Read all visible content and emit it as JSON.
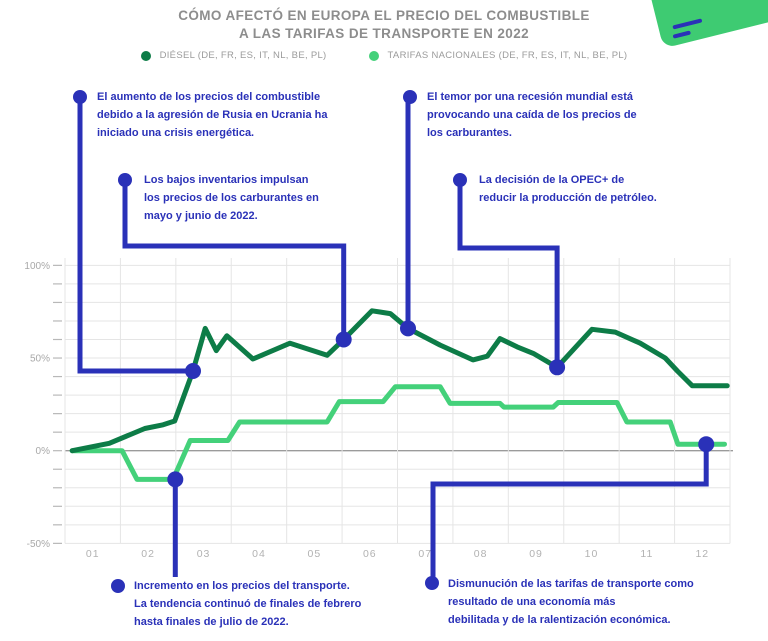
{
  "title": {
    "line1": "CÓMO AFECTÓ EN EUROPA EL PRECIO DEL COMBUSTIBLE",
    "line2": "A LAS TARIFAS DE TRANSPORTE EN 2022"
  },
  "legend": [
    {
      "label": "DIÉSEL (DE, FR, ES, IT, NL, BE, PL)",
      "color": "#0d7c47"
    },
    {
      "label": "TARIFAS NACIONALES (DE, FR, ES, IT, NL, BE, PL)",
      "color": "#44d17a"
    }
  ],
  "annotations": [
    {
      "id": "crisis-energetica",
      "text": "El aumento de los precios del combustible\ndebido a la agresión de Rusia en Ucrania ha\niniciado una crisis energética."
    },
    {
      "id": "bajos-inventarios",
      "text": "Los bajos inventarios impulsan\nlos precios de los carburantes en\nmayo y junio de 2022."
    },
    {
      "id": "recesion-mundial",
      "text": "El temor por una recesión mundial está\nprovocando una caída de los precios de\nlos carburantes."
    },
    {
      "id": "opec",
      "text": "La decisión de la OPEC+ de\nreducir la producción de petróleo."
    },
    {
      "id": "incremento-transporte",
      "text": "Incremento en los precios del transporte.\nLa tendencia continuó de finales de febrero\nhasta finales de julio de 2022."
    },
    {
      "id": "disminucion-tarifas",
      "text": "Dismunución de las tarifas de transporte como\nresultado de una economía más\ndebilitada y de la ralentización económica."
    }
  ],
  "colors": {
    "accent_blue": "#2a31b8",
    "diesel_green": "#0d7c47",
    "tarifas_green": "#44d17a",
    "grid": "#e5e5e5",
    "zero_line": "#9b9b9b",
    "axis_text": "#a8a8a8",
    "month_text": "#b2b2b2",
    "title_text": "#8d8d8d",
    "legend_text": "#9b9b9b",
    "card_green": "#3ecb72"
  },
  "chart_data": {
    "type": "line",
    "title": "CÓMO AFECTÓ EN EUROPA EL PRECIO DEL COMBUSTIBLE A LAS TARIFAS DE TRANSPORTE EN 2022",
    "x": {
      "labels": [
        "01",
        "02",
        "03",
        "04",
        "05",
        "06",
        "07",
        "08",
        "09",
        "10",
        "11",
        "12"
      ],
      "unit": "month of 2022"
    },
    "y": {
      "tick_labels": [
        "100%",
        "50%",
        "0%",
        "-50%"
      ],
      "tick_values": [
        100,
        50,
        0,
        -50
      ],
      "minor_step": 10,
      "range": [
        -50,
        100
      ],
      "unit": "percent change"
    },
    "grid": true,
    "legend_position": "top",
    "series": [
      {
        "id": "diesel",
        "name": "DIÉSEL (DE, FR, ES, IT, NL, BE, PL)",
        "color": "#0d7c47",
        "points": [
          [
            1.13,
            0
          ],
          [
            1.8,
            4
          ],
          [
            2.44,
            12
          ],
          [
            2.77,
            14
          ],
          [
            2.98,
            16
          ],
          [
            3.31,
            43
          ],
          [
            3.53,
            66
          ],
          [
            3.73,
            54
          ],
          [
            3.92,
            62
          ],
          [
            4.39,
            49.5
          ],
          [
            5.06,
            58
          ],
          [
            5.73,
            51.5
          ],
          [
            6.03,
            60
          ],
          [
            6.54,
            75.5
          ],
          [
            6.87,
            74
          ],
          [
            7.19,
            66
          ],
          [
            7.77,
            57
          ],
          [
            8.36,
            49
          ],
          [
            8.62,
            51
          ],
          [
            8.85,
            60.5
          ],
          [
            9.16,
            56
          ],
          [
            9.45,
            52.5
          ],
          [
            9.88,
            45
          ],
          [
            10.51,
            65.5
          ],
          [
            10.93,
            64
          ],
          [
            11.38,
            58
          ],
          [
            11.83,
            50
          ],
          [
            12.05,
            43
          ],
          [
            12.32,
            35
          ],
          [
            12.95,
            35
          ]
        ]
      },
      {
        "id": "tarifas",
        "name": "TARIFAS NACIONALES (DE, FR, ES, IT, NL, BE, PL)",
        "color": "#44d17a",
        "points": [
          [
            1.13,
            0
          ],
          [
            2.03,
            0
          ],
          [
            2.3,
            -15.5
          ],
          [
            2.95,
            -15.5
          ],
          [
            3.26,
            5.5
          ],
          [
            3.94,
            5.5
          ],
          [
            4.15,
            15.5
          ],
          [
            5.73,
            15.5
          ],
          [
            5.95,
            26.5
          ],
          [
            6.74,
            26.5
          ],
          [
            6.96,
            34.5
          ],
          [
            7.77,
            34.5
          ],
          [
            7.95,
            25.5
          ],
          [
            8.85,
            25.5
          ],
          [
            8.92,
            23.5
          ],
          [
            9.81,
            23.5
          ],
          [
            9.9,
            26
          ],
          [
            10.96,
            26
          ],
          [
            11.14,
            15.5
          ],
          [
            11.92,
            15.5
          ],
          [
            12.06,
            3.5
          ],
          [
            12.9,
            3.5
          ]
        ]
      }
    ],
    "event_markers": [
      {
        "series": "diesel",
        "month": 3.31,
        "value": 43,
        "annotation": "crisis-energetica"
      },
      {
        "series": "diesel",
        "month": 6.03,
        "value": 60,
        "annotation": "bajos-inventarios"
      },
      {
        "series": "diesel",
        "month": 7.19,
        "value": 66,
        "annotation": "recesion-mundial"
      },
      {
        "series": "diesel",
        "month": 9.88,
        "value": 45,
        "annotation": "opec"
      },
      {
        "series": "tarifas",
        "month": 2.99,
        "value": -15.5,
        "annotation": "incremento-transporte"
      },
      {
        "series": "tarifas",
        "month": 12.57,
        "value": 3.5,
        "annotation": "disminucion-tarifas"
      }
    ]
  }
}
